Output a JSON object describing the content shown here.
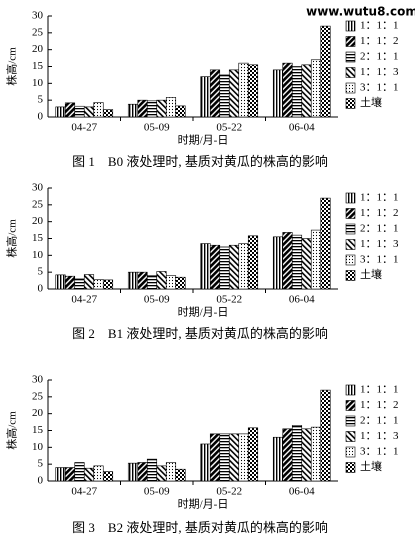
{
  "watermark": "www.wutu8.com",
  "chart_data": [
    {
      "type": "bar",
      "title": "图 1　B0 液处理时, 基质对黄瓜的株高的影响",
      "x_label": "时期/月-日",
      "y_label": "株高/cm",
      "categories": [
        "04-27",
        "05-09",
        "05-22",
        "06-04"
      ],
      "ylim": [
        0,
        30
      ],
      "yticks": [
        0,
        5,
        10,
        15,
        20,
        25,
        30
      ],
      "series": [
        {
          "name": "1：1：1",
          "pattern": "p-vert",
          "values": [
            3,
            3.8,
            12,
            14
          ]
        },
        {
          "name": "1：1：2",
          "pattern": "p-diag",
          "values": [
            4.2,
            5,
            14,
            16
          ]
        },
        {
          "name": "2：1：1",
          "pattern": "p-horiz",
          "values": [
            3.2,
            4.8,
            12.5,
            15
          ]
        },
        {
          "name": "1：1：3",
          "pattern": "p-bdiag",
          "values": [
            3,
            5,
            14,
            15.5
          ]
        },
        {
          "name": "3：1：1",
          "pattern": "p-dots",
          "values": [
            4.3,
            5.8,
            16,
            17
          ]
        },
        {
          "name": "土壤",
          "pattern": "p-check",
          "values": [
            2.2,
            3.3,
            15.5,
            27
          ]
        }
      ]
    },
    {
      "type": "bar",
      "title": "图 2　B1 液处理时, 基质对黄瓜的株高的影响",
      "x_label": "时期/月-日",
      "y_label": "株高/cm",
      "categories": [
        "04-27",
        "05-09",
        "05-22",
        "06-04"
      ],
      "ylim": [
        0,
        30
      ],
      "yticks": [
        0,
        5,
        10,
        15,
        20,
        25,
        30
      ],
      "series": [
        {
          "name": "1：1：1",
          "pattern": "p-vert",
          "values": [
            4.2,
            5,
            13.5,
            15.5
          ]
        },
        {
          "name": "1：1：2",
          "pattern": "p-diag",
          "values": [
            3.8,
            5,
            13,
            16.8
          ]
        },
        {
          "name": "2：1：1",
          "pattern": "p-horiz",
          "values": [
            3,
            4,
            12.5,
            16
          ]
        },
        {
          "name": "1：1：3",
          "pattern": "p-bdiag",
          "values": [
            4.3,
            5.2,
            13,
            15
          ]
        },
        {
          "name": "3：1：1",
          "pattern": "p-dots",
          "values": [
            2.8,
            4,
            13.5,
            17.5
          ]
        },
        {
          "name": "土壤",
          "pattern": "p-check",
          "values": [
            2.7,
            3.5,
            15.8,
            27
          ]
        }
      ]
    },
    {
      "type": "bar",
      "title": "图 3　B2 液处理时, 基质对黄瓜的株高的影响",
      "x_label": "时期/月-日",
      "y_label": "株高/cm",
      "categories": [
        "04-27",
        "05-09",
        "05-22",
        "06-04"
      ],
      "ylim": [
        0,
        30
      ],
      "yticks": [
        0,
        5,
        10,
        15,
        20,
        25,
        30
      ],
      "series": [
        {
          "name": "1：1：1",
          "pattern": "p-vert",
          "values": [
            4,
            5.3,
            11,
            13
          ]
        },
        {
          "name": "1：1：2",
          "pattern": "p-diag",
          "values": [
            4,
            5.5,
            14,
            15.5
          ]
        },
        {
          "name": "2：1：1",
          "pattern": "p-horiz",
          "values": [
            5.5,
            6.5,
            14,
            16.5
          ]
        },
        {
          "name": "1：1：3",
          "pattern": "p-bdiag",
          "values": [
            3.8,
            4.5,
            14,
            15.5
          ]
        },
        {
          "name": "3：1：1",
          "pattern": "p-dots",
          "values": [
            4.5,
            5.5,
            14,
            16
          ]
        },
        {
          "name": "土壤",
          "pattern": "p-check",
          "values": [
            2.8,
            3.5,
            15.8,
            27
          ]
        }
      ]
    }
  ]
}
